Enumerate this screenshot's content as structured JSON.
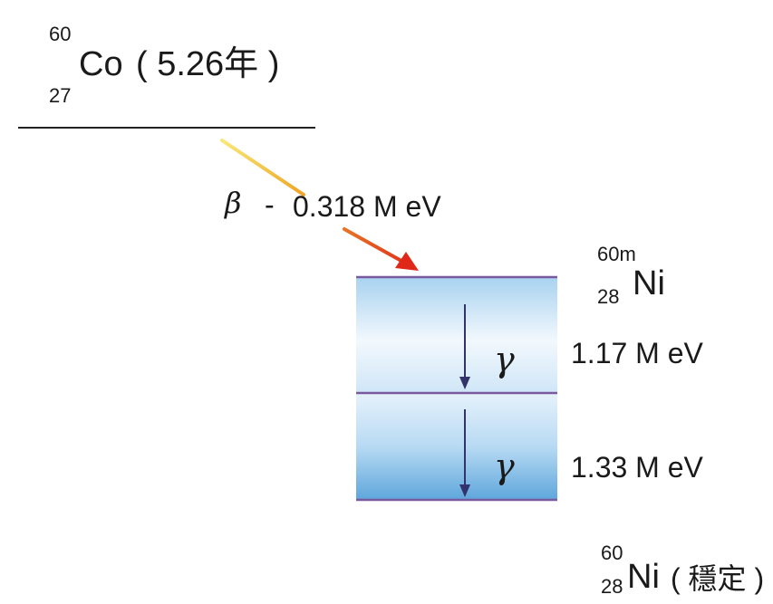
{
  "parent": {
    "mass_number": "60",
    "atomic_number": "27",
    "symbol": "Co",
    "half_life": "( 5.26年 )"
  },
  "beta_decay": {
    "symbol": "β",
    "sign": "-",
    "energy": "0.318 M eV",
    "arrow_colors": [
      "#f7e05a",
      "#e23a1e"
    ]
  },
  "excited": {
    "mass_number": "60m",
    "atomic_number": "28",
    "symbol": "Ni"
  },
  "gammas": [
    {
      "symbol": "γ",
      "energy": "1.17 M eV"
    },
    {
      "symbol": "γ",
      "energy": "1.33 M eV"
    }
  ],
  "stable": {
    "mass_number": "60",
    "atomic_number": "28",
    "symbol": "Ni",
    "note": "( 穩定 )"
  },
  "colors": {
    "level_line": "#7a5a9e",
    "band_light": "#eef6fc",
    "band_dark": "#6aaee0",
    "gamma_arrow": "#33336b"
  }
}
